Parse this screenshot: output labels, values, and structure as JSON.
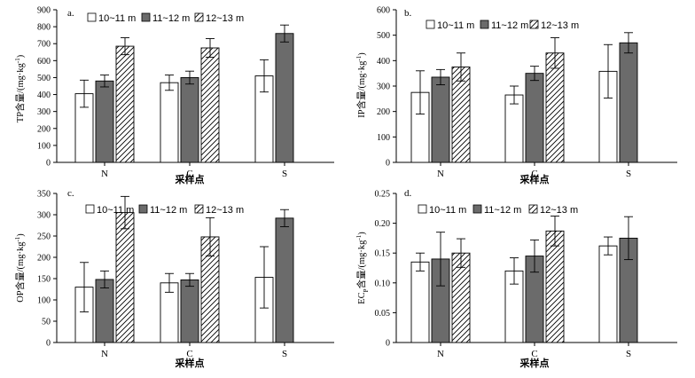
{
  "legend": [
    "10~11 m",
    "11~12 m",
    "12~13 m"
  ],
  "chart_data": [
    {
      "type": "bar",
      "panel_label": "a.",
      "title": "",
      "ylabel_main": "TP含量/(mg·kg",
      "ylabel_sup": "-1",
      "ylabel_end": ")",
      "xlabel": "采样点",
      "categories": [
        "N",
        "C",
        "S"
      ],
      "ylim": [
        0,
        900
      ],
      "yticks": [
        0,
        100,
        200,
        300,
        400,
        500,
        600,
        700,
        800,
        900
      ],
      "series": [
        {
          "name": "10~11 m",
          "values": [
            405,
            470,
            510
          ],
          "errors": [
            80,
            45,
            95
          ]
        },
        {
          "name": "11~12 m",
          "values": [
            480,
            500,
            760
          ],
          "errors": [
            35,
            38,
            50
          ]
        },
        {
          "name": "12~13 m",
          "values": [
            685,
            675,
            null
          ],
          "errors": [
            50,
            55,
            null
          ]
        }
      ]
    },
    {
      "type": "bar",
      "panel_label": "b.",
      "title": "",
      "ylabel_main": "IP含量/(mg·kg",
      "ylabel_sup": "-1",
      "ylabel_end": ")",
      "xlabel": "采样点",
      "categories": [
        "N",
        "C",
        "S"
      ],
      "ylim": [
        0,
        600
      ],
      "yticks": [
        0,
        100,
        200,
        300,
        400,
        500,
        600
      ],
      "series": [
        {
          "name": "10~11 m",
          "values": [
            275,
            265,
            358
          ],
          "errors": [
            85,
            35,
            105
          ]
        },
        {
          "name": "11~12 m",
          "values": [
            335,
            350,
            470
          ],
          "errors": [
            30,
            28,
            40
          ]
        },
        {
          "name": "12~13 m",
          "values": [
            375,
            430,
            null
          ],
          "errors": [
            55,
            60,
            null
          ]
        }
      ]
    },
    {
      "type": "bar",
      "panel_label": "c.",
      "title": "",
      "ylabel_main": "OP含量/(mg·kg",
      "ylabel_sup": "-1",
      "ylabel_end": ")",
      "xlabel": "采样点",
      "categories": [
        "N",
        "C",
        "S"
      ],
      "ylim": [
        0,
        350
      ],
      "yticks": [
        0,
        50,
        100,
        150,
        200,
        250,
        300,
        350
      ],
      "series": [
        {
          "name": "10~11 m",
          "values": [
            130,
            140,
            153
          ],
          "errors": [
            58,
            22,
            72
          ]
        },
        {
          "name": "11~12 m",
          "values": [
            148,
            147,
            292
          ],
          "errors": [
            20,
            15,
            20
          ]
        },
        {
          "name": "12~13 m",
          "values": [
            305,
            248,
            null
          ],
          "errors": [
            38,
            45,
            null
          ]
        }
      ]
    },
    {
      "type": "bar",
      "panel_label": "d.",
      "title": "",
      "ylabel_main": "EC",
      "ylabel_sub": "P",
      "ylabel_rest": "含量/(mg·kg",
      "ylabel_sup": "-1",
      "ylabel_end": ")",
      "xlabel": "采样点",
      "categories": [
        "N",
        "C",
        "S"
      ],
      "ylim": [
        0,
        0.25
      ],
      "yticks": [
        0,
        0.05,
        0.1,
        0.15,
        0.2,
        0.25
      ],
      "ytick_labels": [
        "0",
        "0.05",
        "0.10",
        "0.15",
        "0.20",
        "0.25"
      ],
      "series": [
        {
          "name": "10~11 m",
          "values": [
            0.135,
            0.12,
            0.162
          ],
          "errors": [
            0.015,
            0.022,
            0.015
          ]
        },
        {
          "name": "11~12 m",
          "values": [
            0.14,
            0.145,
            0.175
          ],
          "errors": [
            0.045,
            0.027,
            0.036
          ]
        },
        {
          "name": "12~13 m",
          "values": [
            0.15,
            0.187,
            null
          ],
          "errors": [
            0.024,
            0.025,
            null
          ]
        }
      ]
    }
  ],
  "colors": {
    "fill_gray": "#6b6b6b",
    "stroke": "#000000",
    "background": "#ffffff"
  }
}
